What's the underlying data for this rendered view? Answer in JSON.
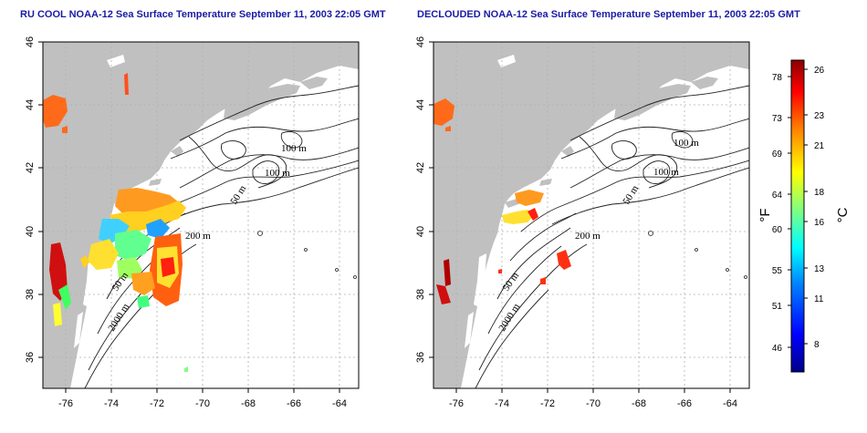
{
  "maps": [
    {
      "title": "RU COOL NOAA-12 Sea Surface Temperature September 11, 2003 22:05 GMT",
      "variant": "cloud-masked SST"
    },
    {
      "title": "DECLOUDED NOAA-12 Sea Surface Temperature September 11, 2003 22:05 GMT",
      "variant": "declouded SST"
    }
  ],
  "axes": {
    "longitude_ticks": [
      "-76",
      "-74",
      "-72",
      "-70",
      "-68",
      "-66",
      "-64"
    ],
    "latitude_ticks": [
      "46",
      "44",
      "42",
      "40",
      "38",
      "36"
    ],
    "lon_range": [
      -77.2,
      -63.2
    ],
    "lat_range": [
      35.0,
      46.0
    ],
    "grid": true
  },
  "contour_labels": [
    "100 m",
    "100 m",
    "50 m",
    "200 m",
    "50 m",
    "2000 m"
  ],
  "colorbar": {
    "fahrenheit_ticks": [
      "78",
      "73",
      "69",
      "64",
      "60",
      "55",
      "51",
      "46"
    ],
    "celsius_ticks": [
      "26",
      "23",
      "21",
      "18",
      "16",
      "13",
      "11",
      "8"
    ],
    "fahrenheit_unit": "°F",
    "celsius_unit": "°C",
    "colors": [
      "#00008b",
      "#0000ff",
      "#0080ff",
      "#00ffff",
      "#80ff80",
      "#ffff00",
      "#ff8000",
      "#ff0000",
      "#8b0000"
    ]
  },
  "colors": {
    "land": "#c0c0c0",
    "ocean": "#ffffff",
    "title": "#1a1aa6",
    "grid": "#b0b0b0"
  }
}
